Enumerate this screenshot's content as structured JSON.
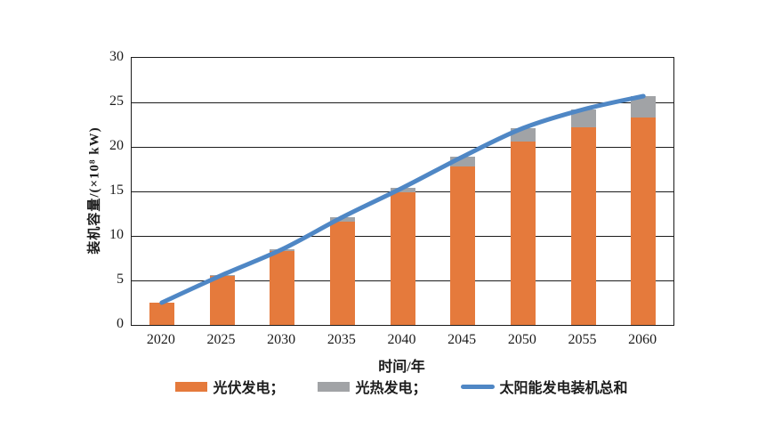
{
  "chart_data": {
    "type": "bar",
    "subtype": "stacked-bars-with-total-line",
    "title": "",
    "categories": [
      "2020",
      "2025",
      "2030",
      "2035",
      "2040",
      "2045",
      "2050",
      "2055",
      "2060"
    ],
    "series": [
      {
        "name": "光伏发电",
        "kind": "bar",
        "color": "#E57A3C",
        "values": [
          2.5,
          5.5,
          8.3,
          11.6,
          14.9,
          17.8,
          20.6,
          22.2,
          23.3
        ]
      },
      {
        "name": "光热发电",
        "kind": "bar",
        "color": "#A1A3A6",
        "values": [
          0.0,
          0.1,
          0.2,
          0.5,
          0.5,
          1.1,
          1.5,
          2.0,
          2.4
        ]
      },
      {
        "name": "太阳能发电装机总和",
        "kind": "line",
        "color": "#4F87C5",
        "values": [
          2.5,
          5.6,
          8.5,
          12.1,
          15.4,
          18.9,
          22.1,
          24.2,
          25.7
        ]
      }
    ],
    "xlabel": "时间/年",
    "ylabel": "装机容量/(×10⁸ kW)",
    "ylim": [
      0,
      30
    ],
    "yticks": [
      0,
      5,
      10,
      15,
      20,
      25,
      30
    ],
    "grid": "horizontal",
    "legend_position": "bottom",
    "legend_labels": [
      "光伏发电；",
      "光热发电；",
      "太阳能发电装机总和"
    ]
  },
  "colors": {
    "axis": "#1c1c1c",
    "text": "#252525",
    "background": "#ffffff"
  }
}
